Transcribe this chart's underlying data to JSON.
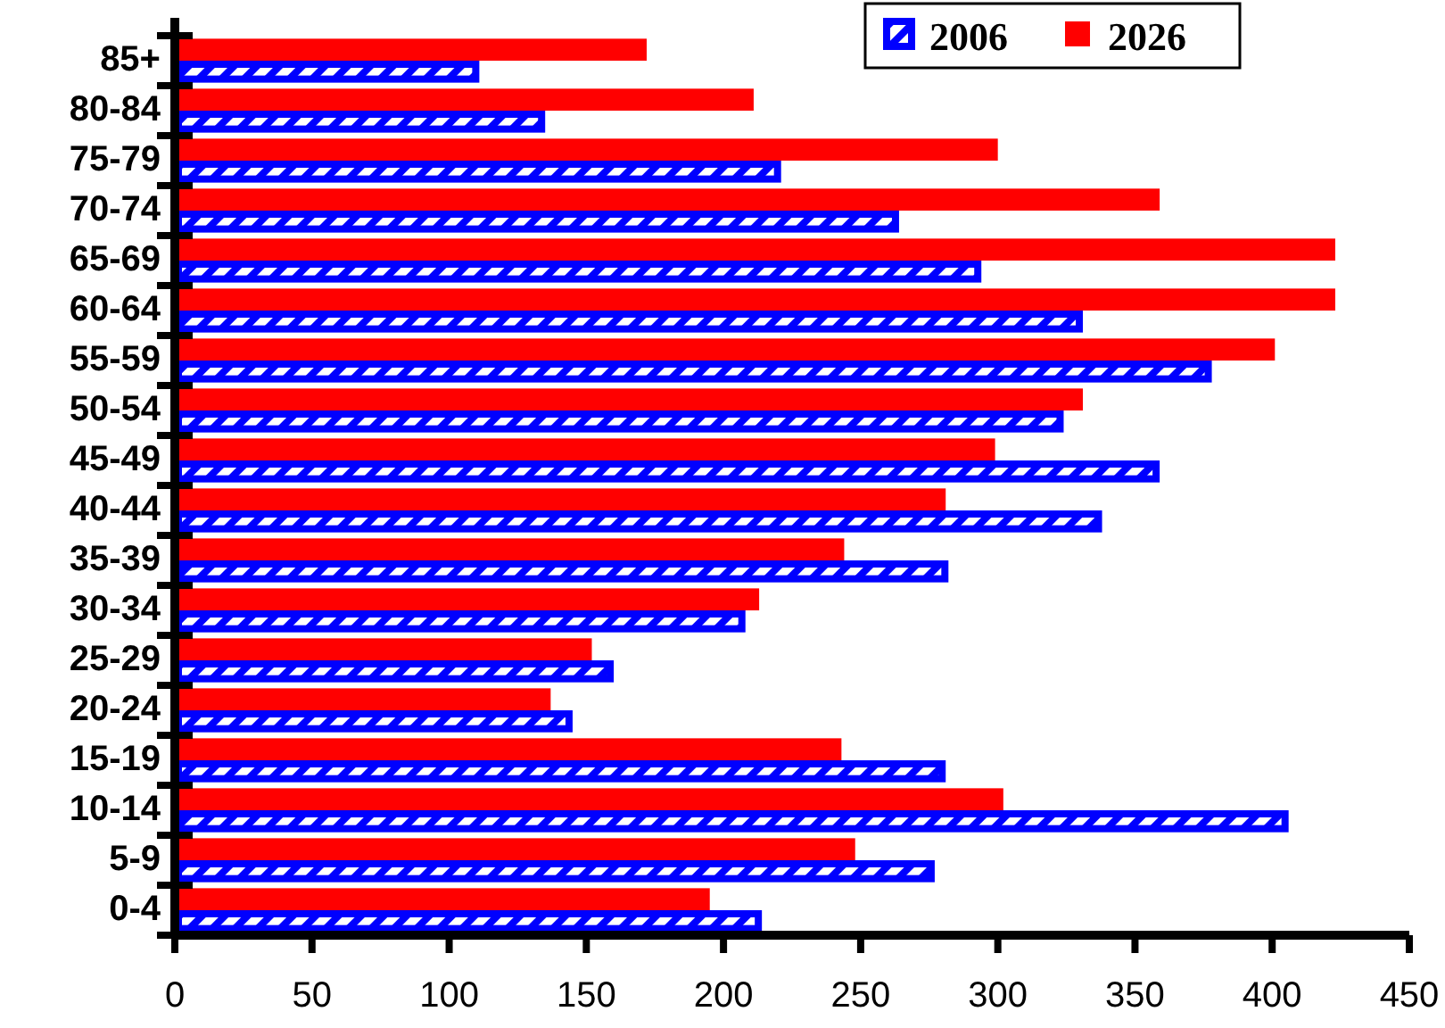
{
  "chart_data": {
    "type": "bar",
    "orientation": "horizontal",
    "categories": [
      "85+",
      "80-84",
      "75-79",
      "70-74",
      "65-69",
      "60-64",
      "55-59",
      "50-54",
      "45-49",
      "40-44",
      "35-39",
      "30-34",
      "25-29",
      "20-24",
      "15-19",
      "10-14",
      "5-9",
      "0-4"
    ],
    "series": [
      {
        "name": "2006",
        "color": "#0000ff",
        "values": [
          111,
          135,
          221,
          264,
          294,
          331,
          378,
          324,
          359,
          338,
          282,
          208,
          160,
          145,
          281,
          406,
          277,
          214
        ]
      },
      {
        "name": "2026",
        "color": "#ff0000",
        "values": [
          172,
          211,
          300,
          359,
          423,
          423,
          401,
          331,
          299,
          281,
          244,
          213,
          152,
          137,
          243,
          302,
          248,
          195
        ]
      }
    ],
    "xlim": [
      0,
      450
    ],
    "xticks": [
      0,
      50,
      100,
      150,
      200,
      250,
      300,
      350,
      400,
      450
    ],
    "grid": false,
    "legend": "top right"
  }
}
